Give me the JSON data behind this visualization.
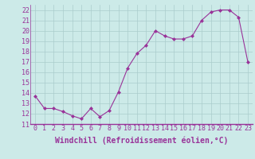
{
  "x": [
    0,
    1,
    2,
    3,
    4,
    5,
    6,
    7,
    8,
    9,
    10,
    11,
    12,
    13,
    14,
    15,
    16,
    17,
    18,
    19,
    20,
    21,
    22,
    23
  ],
  "y": [
    13.7,
    12.5,
    12.5,
    12.2,
    11.8,
    11.5,
    12.5,
    11.7,
    12.3,
    14.1,
    16.4,
    17.8,
    18.6,
    20.0,
    19.5,
    19.2,
    19.2,
    19.5,
    21.0,
    21.8,
    22.0,
    22.0,
    21.3,
    17.0
  ],
  "line_color": "#993399",
  "marker": "D",
  "marker_size": 2,
  "bg_color": "#cceae8",
  "grid_color": "#aacccc",
  "xlabel": "Windchill (Refroidissement éolien,°C)",
  "xlabel_fontsize": 7,
  "tick_fontsize": 6,
  "ylim": [
    11,
    22.5
  ],
  "xlim": [
    -0.5,
    23.5
  ],
  "yticks": [
    11,
    12,
    13,
    14,
    15,
    16,
    17,
    18,
    19,
    20,
    21,
    22
  ],
  "xticks": [
    0,
    1,
    2,
    3,
    4,
    5,
    6,
    7,
    8,
    9,
    10,
    11,
    12,
    13,
    14,
    15,
    16,
    17,
    18,
    19,
    20,
    21,
    22,
    23
  ]
}
